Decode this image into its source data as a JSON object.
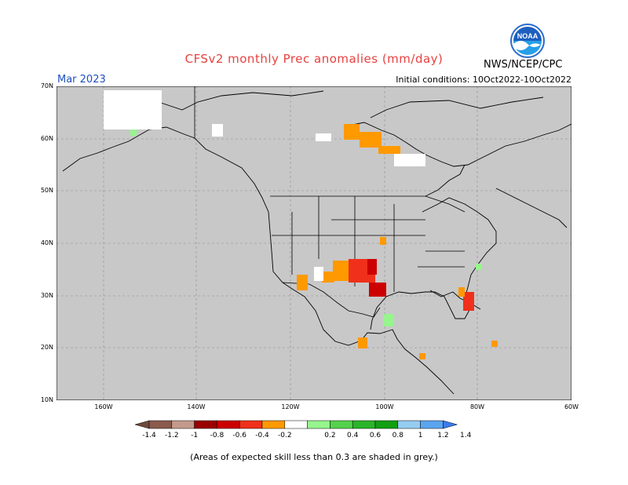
{
  "header": {
    "title": "CFSv2 monthly Prec anomalies (mm/day)",
    "valid_month": "Mar 2023",
    "initial_conditions": "Initial conditions: 10Oct2022-10Oct2022",
    "agency": "NWS/NCEP/CPC",
    "logo_text": "NOAA"
  },
  "map": {
    "lat_labels": [
      "70N",
      "60N",
      "50N",
      "40N",
      "30N",
      "20N",
      "10N"
    ],
    "lon_labels": [
      "160W",
      "140W",
      "120W",
      "100W",
      "80W",
      "60W"
    ],
    "background": "#c8c8c8",
    "land_line": "#000000"
  },
  "legend": {
    "ticks": [
      "-1.4",
      "-1.2",
      "-1",
      "-0.8",
      "-0.6",
      "-0.4",
      "-0.2",
      "0.2",
      "0.4",
      "0.6",
      "0.8",
      "1",
      "1.2",
      "1.4"
    ],
    "colors": [
      "#6f4a3c",
      "#8a5a4c",
      "#c49a8c",
      "#9a0000",
      "#cc0000",
      "#f0301b",
      "#ff9900",
      "#ffffff",
      "#96f58c",
      "#55d24b",
      "#2ab52a",
      "#11a011",
      "#96ccf0",
      "#5aa5f0",
      "#3a7cf0"
    ]
  },
  "footer": "(Areas of expected skill less than 0.3 are shaded in grey.)"
}
